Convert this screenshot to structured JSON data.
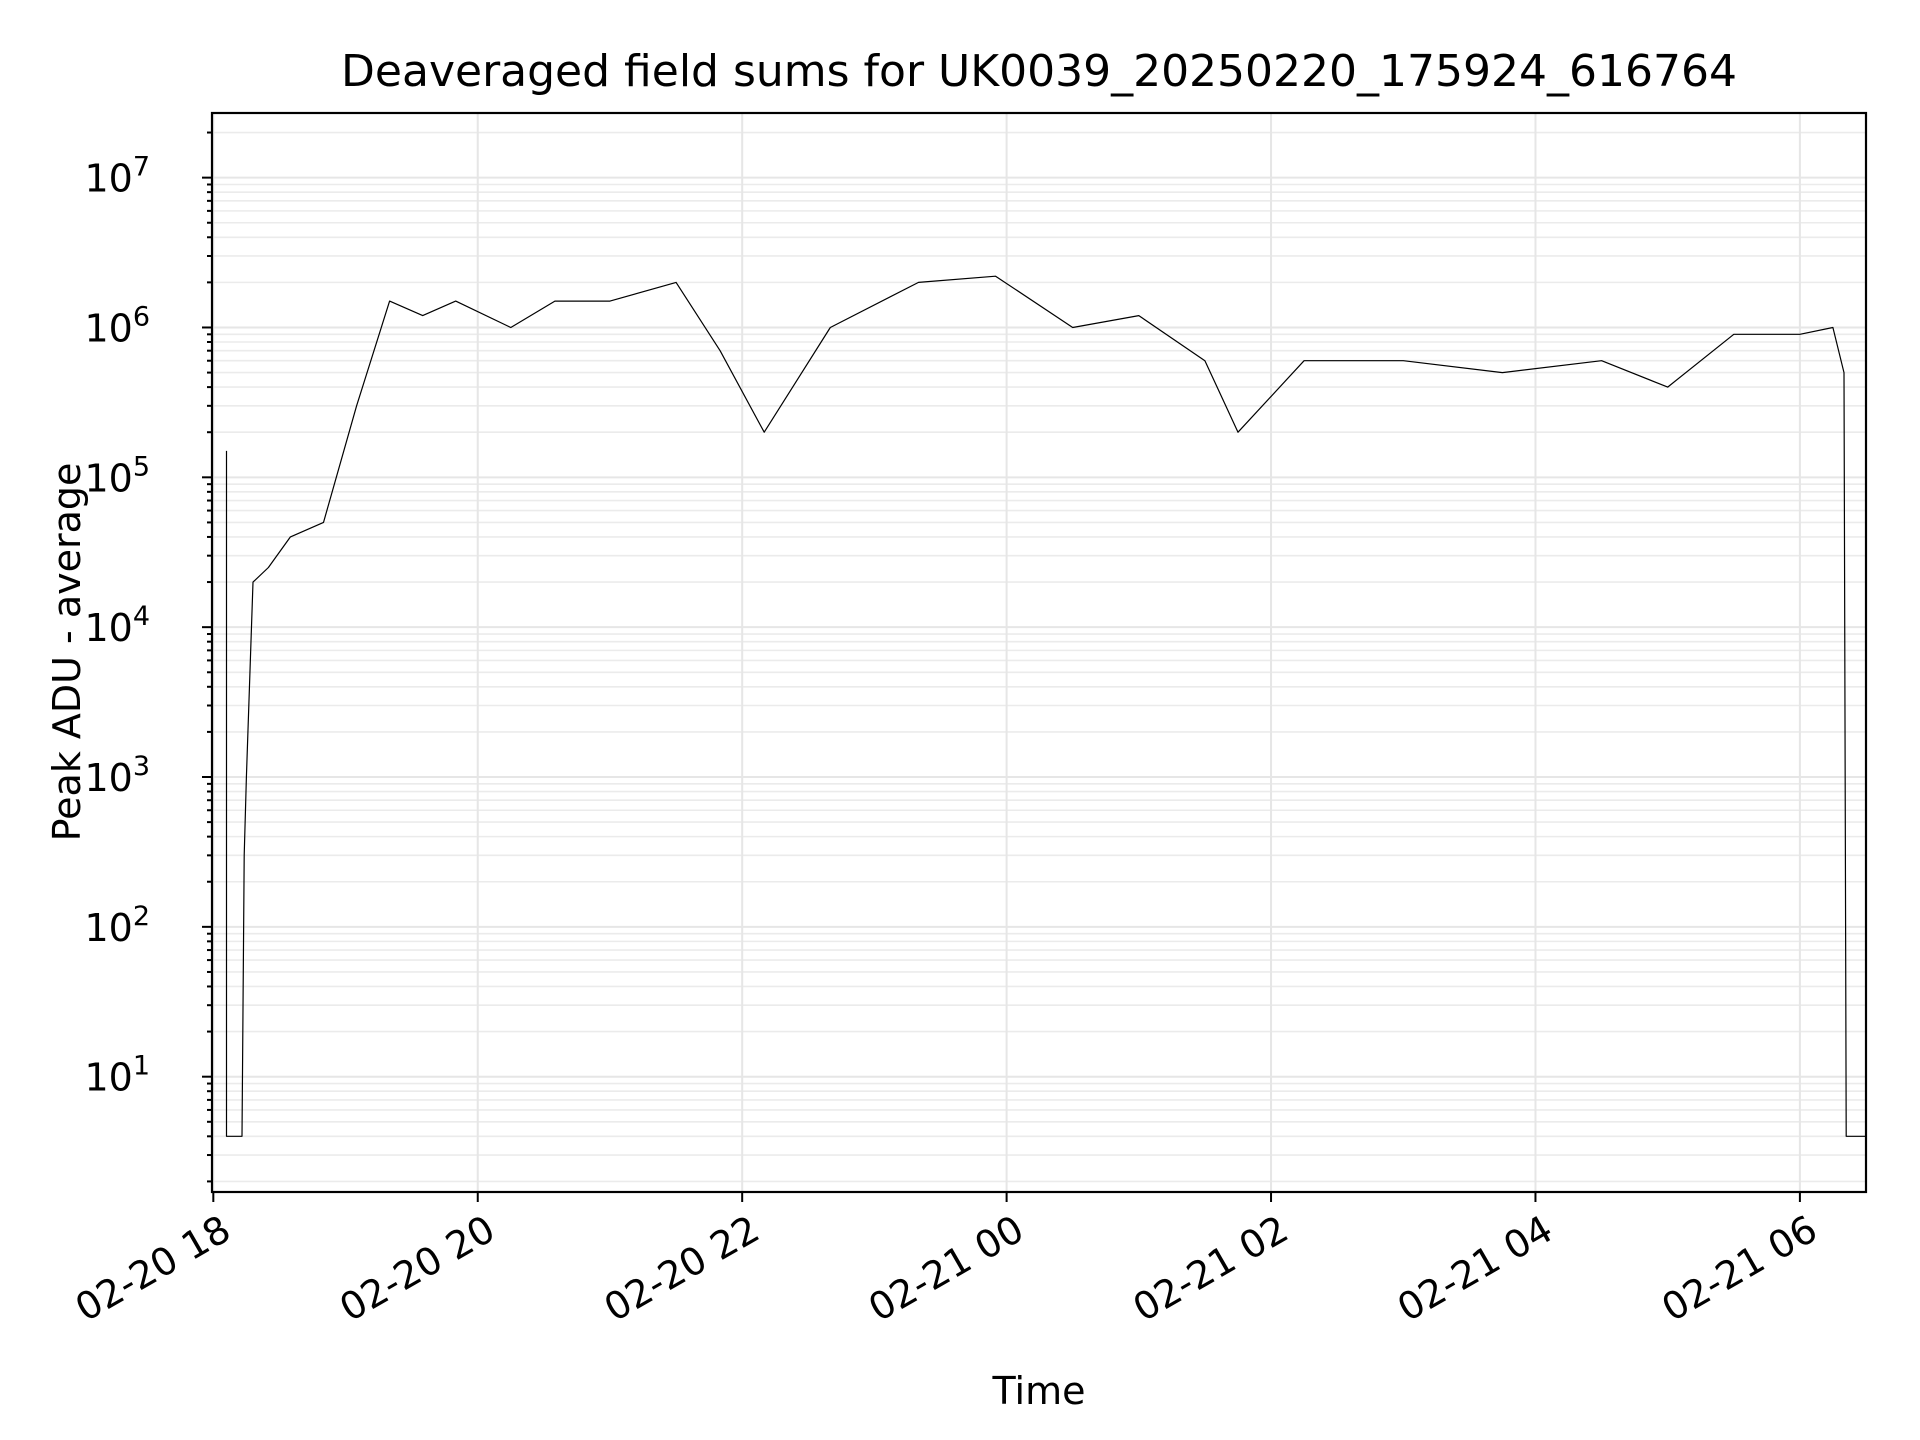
{
  "chart_data": {
    "type": "line",
    "title": "Deaveraged field sums for UK0039_20250220_175924_616764",
    "xlabel": "Time",
    "ylabel": "Peak ADU - average",
    "yscale": "log",
    "ylim": [
      1.7,
      27000000
    ],
    "xlim": [
      "2025-02-20 17:59:24",
      "2025-02-21 06:30:00"
    ],
    "grid": "major and minor",
    "x_ticks": [
      "2025-02-20 18:00",
      "2025-02-20 20:00",
      "2025-02-20 22:00",
      "2025-02-21 00:00",
      "2025-02-21 02:00",
      "2025-02-21 04:00",
      "2025-02-21 06:00"
    ],
    "x_tick_labels": [
      "02-20 18",
      "02-20 20",
      "02-20 22",
      "02-21 00",
      "02-21 02",
      "02-21 04",
      "02-21 06"
    ],
    "y_ticks": [
      10,
      100,
      1000,
      10000,
      100000,
      1000000,
      10000000
    ],
    "y_tick_labels": [
      {
        "base": "10",
        "exp": "1"
      },
      {
        "base": "10",
        "exp": "2"
      },
      {
        "base": "10",
        "exp": "3"
      },
      {
        "base": "10",
        "exp": "4"
      },
      {
        "base": "10",
        "exp": "5"
      },
      {
        "base": "10",
        "exp": "6"
      },
      {
        "base": "10",
        "exp": "7"
      }
    ],
    "series": [
      {
        "color": "#000000",
        "x": [
          "2025-02-20 18:06",
          "2025-02-20 18:06",
          "2025-02-20 18:07",
          "2025-02-20 18:13",
          "2025-02-20 18:14",
          "2025-02-20 18:15",
          "2025-02-20 18:18",
          "2025-02-20 18:25",
          "2025-02-20 18:35",
          "2025-02-20 18:50",
          "2025-02-20 19:05",
          "2025-02-20 19:20",
          "2025-02-20 19:35",
          "2025-02-20 19:50",
          "2025-02-20 20:15",
          "2025-02-20 20:35",
          "2025-02-20 21:00",
          "2025-02-20 21:30",
          "2025-02-20 21:50",
          "2025-02-20 22:10",
          "2025-02-20 22:40",
          "2025-02-20 23:20",
          "2025-02-20 23:55",
          "2025-02-21 00:30",
          "2025-02-21 01:00",
          "2025-02-21 01:30",
          "2025-02-21 01:45",
          "2025-02-21 02:15",
          "2025-02-21 03:00",
          "2025-02-21 03:45",
          "2025-02-21 04:30",
          "2025-02-21 05:00",
          "2025-02-21 05:30",
          "2025-02-21 06:00",
          "2025-02-21 06:15",
          "2025-02-21 06:20",
          "2025-02-21 06:21",
          "2025-02-21 06:30"
        ],
        "y": [
          150000,
          4,
          4,
          4,
          300,
          1000,
          20000,
          25000,
          40000,
          50000,
          300000,
          1500000,
          1200000,
          1500000,
          1000000,
          1500000,
          1500000,
          2000000,
          700000,
          200000,
          1000000,
          2000000,
          2200000,
          1000000,
          1200000,
          600000,
          200000,
          600000,
          600000,
          500000,
          600000,
          400000,
          900000,
          900000,
          1000000,
          500000,
          4,
          4
        ]
      }
    ]
  }
}
